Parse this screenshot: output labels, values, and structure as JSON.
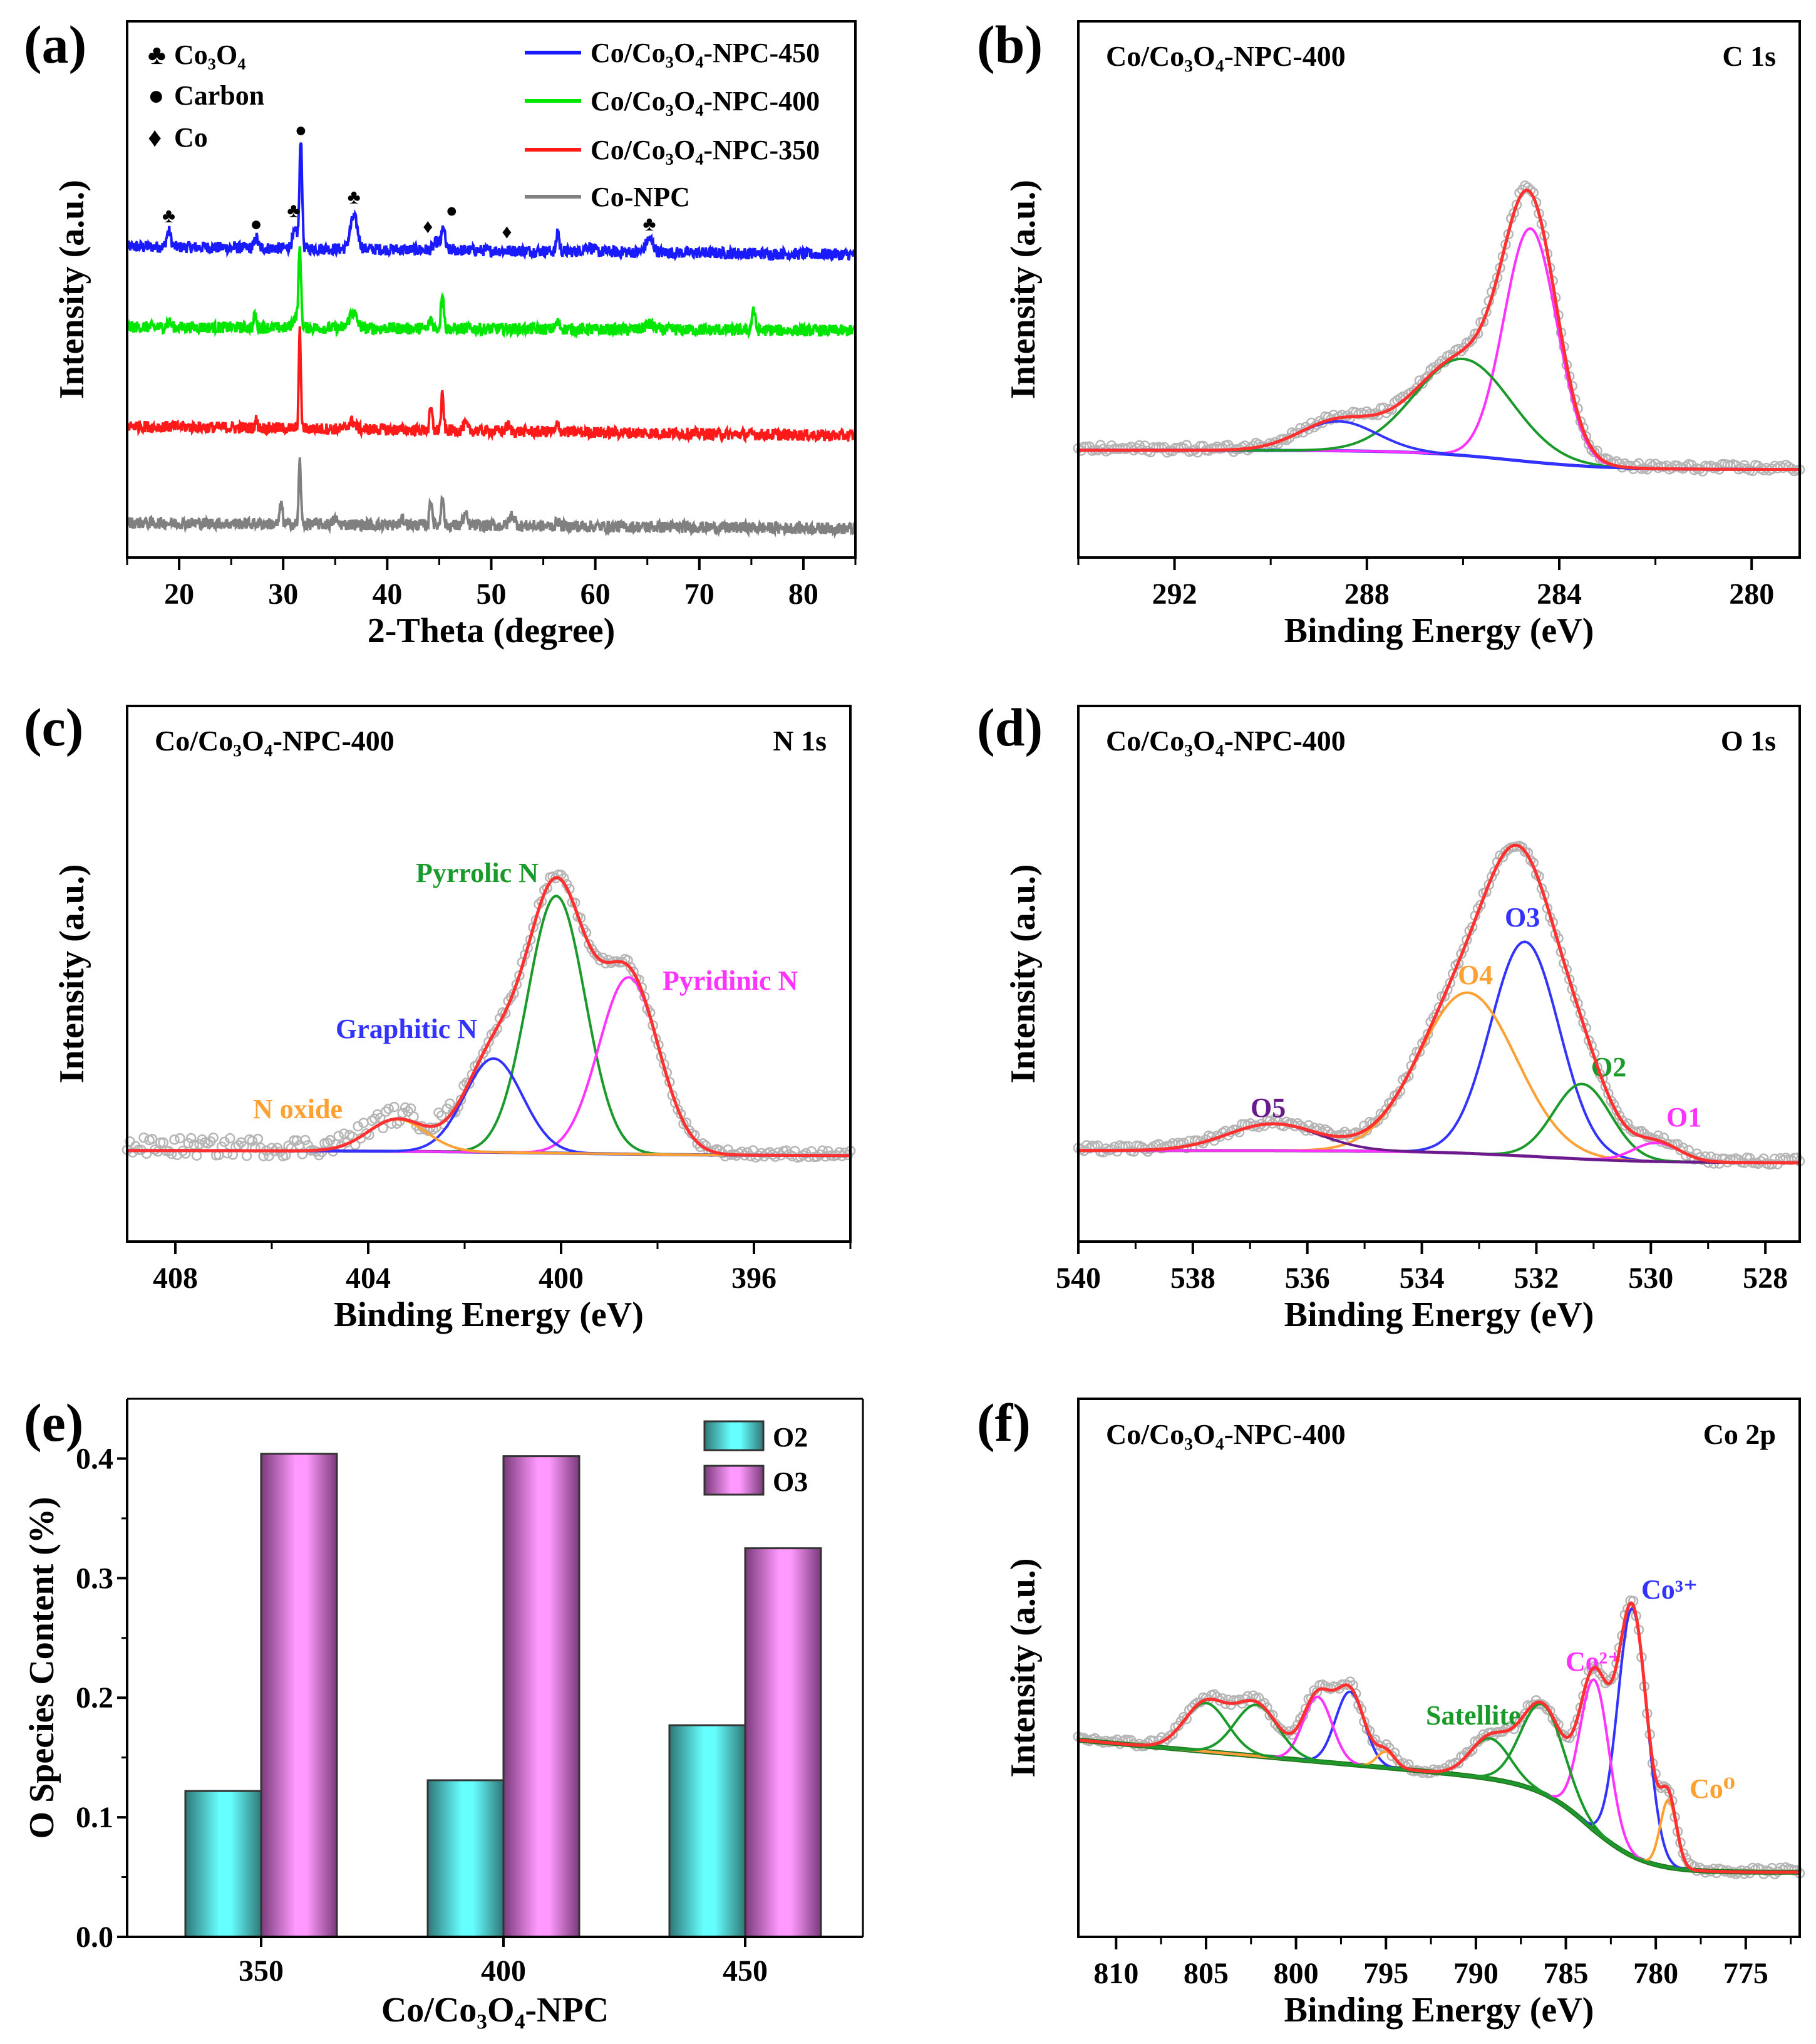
{
  "chart_data": [
    {
      "panel": "(a)",
      "type": "line",
      "xlabel": "2-Theta (degree)",
      "ylabel": "Intensity (a.u.)",
      "xlim": [
        15,
        85
      ],
      "ylim": [
        0,
        100
      ],
      "xticks": [
        20,
        30,
        40,
        50,
        60,
        70,
        80
      ],
      "yticks": [],
      "marker_legend": [
        {
          "symbol": "♣",
          "label": "Co₃O₄"
        },
        {
          "symbol": "●",
          "label": "Carbon"
        },
        {
          "symbol": "♦",
          "label": "Co"
        }
      ],
      "series": [
        {
          "name": "Co/Co₃O₄-NPC-450",
          "color": "#1a1aff",
          "baseline": [
            58,
            56.5
          ],
          "peaks": [
            [
              19,
              3,
              0.2
            ],
            [
              27.4,
              2,
              0.15
            ],
            [
              31.2,
              3,
              0.3
            ],
            [
              31.7,
              20,
              0.12
            ],
            [
              36.8,
              6,
              0.35
            ],
            [
              44.8,
              1.5,
              0.3
            ],
            [
              45.4,
              4,
              0.15
            ],
            [
              56.4,
              4,
              0.12
            ],
            [
              59.3,
              1,
              0.4
            ],
            [
              65.2,
              2.5,
              0.35
            ]
          ]
        },
        {
          "name": "Co/Co₃O₄-NPC-400",
          "color": "#00e600",
          "baseline": [
            43,
            42.3
          ],
          "peaks": [
            [
              19,
              1,
              0.2
            ],
            [
              27.3,
              2.5,
              0.12
            ],
            [
              31.2,
              2,
              0.3
            ],
            [
              31.6,
              14,
              0.12
            ],
            [
              36.7,
              3,
              0.35
            ],
            [
              44.2,
              2,
              0.15
            ],
            [
              45.3,
              7,
              0.13
            ],
            [
              56.4,
              1.2,
              0.2
            ],
            [
              65.2,
              1,
              0.4
            ],
            [
              75.2,
              4,
              0.15
            ]
          ]
        },
        {
          "name": "Co/Co₃O₄-NPC-350",
          "color": "#ff1a1a",
          "baseline": [
            24.5,
            22.7
          ],
          "peaks": [
            [
              27.4,
              1.5,
              0.12
            ],
            [
              31.6,
              18,
              0.1
            ],
            [
              36.6,
              1.5,
              0.3
            ],
            [
              44.2,
              4,
              0.13
            ],
            [
              45.3,
              6.5,
              0.12
            ],
            [
              47.5,
              1.2,
              0.2
            ],
            [
              51.6,
              1,
              0.2
            ],
            [
              56.4,
              1.5,
              0.15
            ]
          ]
        },
        {
          "name": "Co-NPC",
          "color": "#808080",
          "baseline": [
            6.5,
            5.4
          ],
          "peaks": [
            [
              29.8,
              4,
              0.12
            ],
            [
              31.6,
              12,
              0.1
            ],
            [
              35,
              1,
              0.2
            ],
            [
              41.5,
              1,
              0.2
            ],
            [
              44.2,
              5,
              0.13
            ],
            [
              45.3,
              6,
              0.12
            ],
            [
              47.5,
              2,
              0.2
            ],
            [
              52,
              2,
              0.25
            ],
            [
              56.4,
              1,
              0.15
            ]
          ]
        }
      ],
      "peak_markers": [
        {
          "symbol": "♣",
          "x": 19,
          "y": 62.5
        },
        {
          "symbol": "●",
          "x": 27.4,
          "y": 61
        },
        {
          "symbol": "♣",
          "x": 31,
          "y": 63.5
        },
        {
          "symbol": "●",
          "x": 31.7,
          "y": 78.5
        },
        {
          "symbol": "♣",
          "x": 36.8,
          "y": 66
        },
        {
          "symbol": "♦",
          "x": 44.6,
          "y": 60.5
        },
        {
          "symbol": "●",
          "x": 45.5,
          "y": 63.5
        },
        {
          "symbol": "♦",
          "x": 51.5,
          "y": 59.5
        },
        {
          "symbol": "♣",
          "x": 65.2,
          "y": 61
        }
      ]
    },
    {
      "panel": "(b)",
      "type": "line",
      "title_left": "Co/Co₃O₄-NPC-400",
      "title_right": "C 1s",
      "xlabel": "Binding Energy (eV)",
      "ylabel": "Intensity (a.u.)",
      "xlim": [
        294,
        279
      ],
      "ylim": [
        0,
        100
      ],
      "xticks": [
        292,
        288,
        284,
        280
      ],
      "background": {
        "low": 16.4,
        "step": 3.6,
        "center": 285,
        "width": 1,
        "slope": 0,
        "color": "#1a1aff"
      },
      "envelope_color": "#ff3030",
      "components": [
        {
          "center": 284.6,
          "height": 43.5,
          "sigma": 0.55,
          "color": "#ff33ff"
        },
        {
          "center": 286.0,
          "height": 18,
          "sigma": 1.0,
          "color": "#1a9a2a"
        },
        {
          "center": 288.6,
          "height": 5.5,
          "sigma": 0.8,
          "color": "#3333ff"
        }
      ],
      "annotations": []
    },
    {
      "panel": "(c)",
      "type": "line",
      "title_left": "Co/Co₃O₄-NPC-400",
      "title_right": "N 1s",
      "xlabel": "Binding Energy (eV)",
      "ylabel": "Intensity (a.u.)",
      "xlim": [
        409,
        394
      ],
      "ylim": [
        0,
        100
      ],
      "xticks": [
        408,
        404,
        400,
        396
      ],
      "background": {
        "low": 16,
        "step": 1,
        "center": 400,
        "width": 2,
        "slope": 0,
        "color": "#3333aa"
      },
      "envelope_color": "#ff3030",
      "components": [
        {
          "center": 400.1,
          "height": 48,
          "sigma": 0.6,
          "color": "#1a9a2a",
          "label": "Pyrrolic N"
        },
        {
          "center": 398.6,
          "height": 33,
          "sigma": 0.62,
          "color": "#ff33ff",
          "label": "Pyridinic N"
        },
        {
          "center": 401.4,
          "height": 17.5,
          "sigma": 0.6,
          "color": "#3333ff",
          "label": "Graphitic N"
        },
        {
          "center": 403.4,
          "height": 6,
          "sigma": 0.6,
          "color": "#ffa033",
          "label": "N oxide"
        }
      ]
    },
    {
      "panel": "(d)",
      "type": "line",
      "title_left": "Co/Co₃O₄-NPC-400",
      "title_right": "O 1s",
      "xlabel": "Binding Energy (eV)",
      "ylabel": "Intensity (a.u.)",
      "xlim": [
        540,
        527.4
      ],
      "ylim": [
        0,
        100
      ],
      "xticks": [
        540,
        538,
        536,
        534,
        532,
        530,
        528
      ],
      "background": {
        "low": 14.7,
        "step": 2.3,
        "center": 532,
        "width": 1,
        "slope": 0,
        "color": "#6a1a8a"
      },
      "envelope_color": "#ff3030",
      "components": [
        {
          "center": 532.2,
          "height": 40,
          "sigma": 0.6,
          "color": "#3333ff",
          "label": "O3"
        },
        {
          "center": 533.2,
          "height": 30,
          "sigma": 0.85,
          "color": "#ffa033",
          "label": "O4"
        },
        {
          "center": 531.2,
          "height": 14,
          "sigma": 0.5,
          "color": "#1a9a2a",
          "label": "O2"
        },
        {
          "center": 529.9,
          "height": 3.5,
          "sigma": 0.4,
          "color": "#ff33ff",
          "label": "O1"
        },
        {
          "center": 536.6,
          "height": 5,
          "sigma": 0.8,
          "color": "#6a1a8a",
          "label": "O5"
        }
      ]
    },
    {
      "panel": "(e)",
      "type": "bar",
      "xlabel": "Co/Co₃O₄-NPC",
      "ylabel": "O Species Content (%)",
      "categories": [
        "350",
        "400",
        "450"
      ],
      "ylim": [
        0,
        0.45
      ],
      "yticks": [
        "0.0",
        "0.1",
        "0.2",
        "0.3",
        "0.4"
      ],
      "legend": "top-right",
      "series": [
        {
          "name": "O2",
          "values": [
            0.122,
            0.131,
            0.177
          ],
          "color": "#66ffff"
        },
        {
          "name": "O3",
          "values": [
            0.404,
            0.402,
            0.325
          ],
          "color": "#ff99ff"
        }
      ]
    },
    {
      "panel": "(f)",
      "type": "line",
      "title_left": "Co/Co₃O₄-NPC-400",
      "title_right": "Co 2p",
      "xlabel": "Binding Energy (eV)",
      "ylabel": "Intensity (a.u.)",
      "xlim": [
        812.1,
        772
      ],
      "ylim": [
        0,
        100
      ],
      "xticks": [
        810,
        805,
        800,
        795,
        790,
        785,
        780,
        775
      ],
      "background": {
        "low": 12,
        "step": 16,
        "center": 783.5,
        "width": 1.5,
        "slope": 0.3,
        "color": "#1a7a1a"
      },
      "envelope_color": "#ff3030",
      "components": [
        {
          "center": 781.3,
          "height": 46,
          "sigma": 0.8,
          "color": "#3333ff",
          "label": "Co³⁺"
        },
        {
          "center": 783.4,
          "height": 28,
          "sigma": 0.8,
          "color": "#ff33ff",
          "label": "Co²⁺"
        },
        {
          "center": 786.3,
          "height": 16.5,
          "sigma": 1.2,
          "color": "#1a9a2a",
          "label": "Satellite"
        },
        {
          "center": 779.3,
          "height": 12.5,
          "sigma": 0.45,
          "color": "#ffa033",
          "label": "Co⁰"
        },
        {
          "center": 789.2,
          "height": 7.5,
          "sigma": 1.1,
          "color": "#1a9a2a"
        },
        {
          "center": 797.0,
          "height": 13.5,
          "sigma": 0.8,
          "color": "#3333ff"
        },
        {
          "center": 798.8,
          "height": 12,
          "sigma": 0.8,
          "color": "#ff33ff"
        },
        {
          "center": 795.0,
          "height": 3,
          "sigma": 0.5,
          "color": "#ffa033"
        },
        {
          "center": 802.2,
          "height": 9.5,
          "sigma": 1.2,
          "color": "#1a9a2a"
        },
        {
          "center": 805.0,
          "height": 9,
          "sigma": 1.2,
          "color": "#1a9a2a"
        }
      ]
    }
  ]
}
